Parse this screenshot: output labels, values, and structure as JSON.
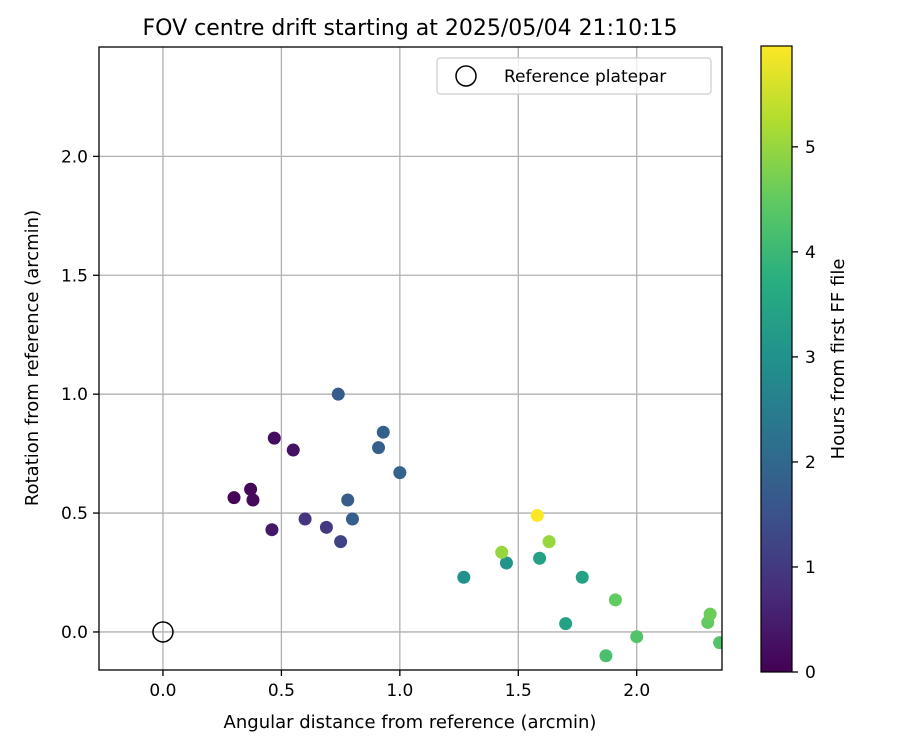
{
  "chart_data": {
    "type": "scatter",
    "title": "FOV centre drift starting at 2025/05/04 21:10:15",
    "xlabel": "Angular distance from reference (arcmin)",
    "ylabel": "Rotation from reference (arcmin)",
    "xlim": [
      -0.27,
      2.36
    ],
    "ylim": [
      -0.16,
      2.46
    ],
    "xticks": [
      0.0,
      0.5,
      1.0,
      1.5,
      2.0
    ],
    "xtick_labels": [
      "0.0",
      "0.5",
      "1.0",
      "1.5",
      "2.0"
    ],
    "yticks": [
      0.0,
      0.5,
      1.0,
      1.5,
      2.0
    ],
    "ytick_labels": [
      "0.0",
      "0.5",
      "1.0",
      "1.5",
      "2.0"
    ],
    "grid": true,
    "legend": {
      "placement": "top-right",
      "entries": [
        {
          "label": "Reference platepar",
          "marker": "open-circle",
          "color": "#000000"
        }
      ]
    },
    "reference_point": {
      "x": 0.0,
      "y": 0.0
    },
    "colorbar": {
      "label": "Hours from first FF file",
      "range": [
        0,
        5.96
      ],
      "ticks": [
        0,
        1,
        2,
        3,
        4,
        5
      ],
      "tick_labels": [
        "0",
        "1",
        "2",
        "3",
        "4",
        "5"
      ],
      "colormap": "viridis"
    },
    "points": [
      {
        "x": 0.3,
        "y": 0.565,
        "hours": 0.05
      },
      {
        "x": 0.37,
        "y": 0.6,
        "hours": 0.1
      },
      {
        "x": 0.38,
        "y": 0.555,
        "hours": 0.15
      },
      {
        "x": 0.47,
        "y": 0.815,
        "hours": 0.2
      },
      {
        "x": 0.55,
        "y": 0.765,
        "hours": 0.3
      },
      {
        "x": 0.46,
        "y": 0.43,
        "hours": 0.4
      },
      {
        "x": 0.6,
        "y": 0.475,
        "hours": 0.9
      },
      {
        "x": 0.69,
        "y": 0.44,
        "hours": 1.0
      },
      {
        "x": 0.75,
        "y": 0.38,
        "hours": 1.2
      },
      {
        "x": 0.74,
        "y": 1.0,
        "hours": 1.7
      },
      {
        "x": 0.78,
        "y": 0.555,
        "hours": 1.75
      },
      {
        "x": 0.8,
        "y": 0.475,
        "hours": 1.8
      },
      {
        "x": 0.91,
        "y": 0.775,
        "hours": 1.8
      },
      {
        "x": 0.93,
        "y": 0.84,
        "hours": 1.85
      },
      {
        "x": 1.0,
        "y": 0.67,
        "hours": 1.9
      },
      {
        "x": 1.27,
        "y": 0.23,
        "hours": 3.0
      },
      {
        "x": 1.45,
        "y": 0.29,
        "hours": 3.05
      },
      {
        "x": 1.59,
        "y": 0.31,
        "hours": 3.4
      },
      {
        "x": 1.7,
        "y": 0.035,
        "hours": 3.4
      },
      {
        "x": 1.77,
        "y": 0.23,
        "hours": 3.4
      },
      {
        "x": 1.43,
        "y": 0.335,
        "hours": 5.0
      },
      {
        "x": 1.58,
        "y": 0.49,
        "hours": 5.95
      },
      {
        "x": 1.63,
        "y": 0.38,
        "hours": 5.0
      },
      {
        "x": 1.87,
        "y": -0.1,
        "hours": 4.2
      },
      {
        "x": 1.91,
        "y": 0.135,
        "hours": 4.5
      },
      {
        "x": 2.0,
        "y": -0.02,
        "hours": 4.3
      },
      {
        "x": 2.3,
        "y": 0.04,
        "hours": 4.5
      },
      {
        "x": 2.31,
        "y": 0.075,
        "hours": 4.6
      },
      {
        "x": 2.35,
        "y": -0.045,
        "hours": 4.3
      }
    ]
  }
}
